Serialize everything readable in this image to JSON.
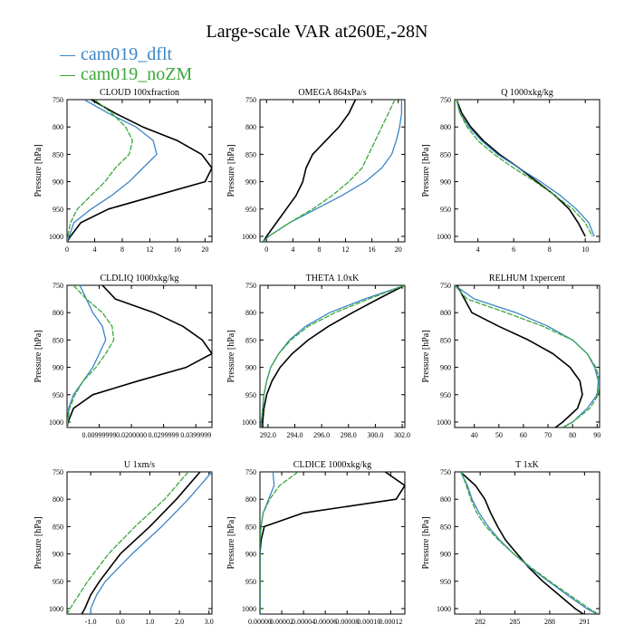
{
  "title": "Large-scale VAR at260E,-28N",
  "legend": [
    {
      "label": "cam019_dflt",
      "color": "#3a85c5"
    },
    {
      "label": "cam019_noZM",
      "color": "#3aa83a"
    }
  ],
  "colors": {
    "black": "#000000",
    "dflt": "#3a85c5",
    "noZM": "#3aa83a"
  },
  "chart_data": [
    {
      "type": "line",
      "title": "CLOUD  100xfraction",
      "ylabel": "Pressure [hPa]",
      "ylim": [
        1010,
        750
      ],
      "yticks": [
        750,
        800,
        850,
        900,
        950,
        1000
      ],
      "xlim": [
        0,
        21
      ],
      "xticks": [
        0,
        4,
        8,
        12,
        16,
        20
      ],
      "xticklabels": [
        "0",
        "4",
        "8",
        "12",
        "16",
        "20"
      ],
      "y": [
        750,
        775,
        800,
        825,
        850,
        875,
        900,
        925,
        950,
        975,
        1000,
        1010
      ],
      "series": [
        {
          "color": "black",
          "values": [
            3.5,
            7,
            11,
            16,
            19.5,
            21,
            20,
            13,
            6,
            2,
            0.5,
            0
          ]
        },
        {
          "color": "dflt",
          "values": [
            2.5,
            6,
            10,
            12.5,
            13,
            11,
            9,
            6.5,
            3.5,
            1,
            0.3,
            0
          ]
        },
        {
          "color": "noZM",
          "values": [
            4,
            6.5,
            8.5,
            9.5,
            9,
            7,
            5.5,
            3.5,
            1.5,
            0.5,
            0.1,
            0
          ]
        }
      ]
    },
    {
      "type": "line",
      "title": "OMEGA  864xPa/s",
      "ylabel": "Pressure [hPa]",
      "ylim": [
        1010,
        750
      ],
      "yticks": [
        750,
        800,
        850,
        900,
        950,
        1000
      ],
      "xlim": [
        -1,
        21
      ],
      "xticks": [
        0,
        4,
        8,
        12,
        16,
        20
      ],
      "xticklabels": [
        "0",
        "4",
        "8",
        "12",
        "16",
        "20"
      ],
      "y": [
        750,
        775,
        800,
        825,
        850,
        875,
        900,
        925,
        950,
        975,
        1000,
        1010
      ],
      "series": [
        {
          "color": "black",
          "values": [
            13.5,
            12.5,
            11,
            9,
            7,
            6,
            5.5,
            4.5,
            3,
            1.5,
            0,
            -0.5
          ]
        },
        {
          "color": "dflt",
          "values": [
            20.5,
            20.5,
            20.2,
            19.7,
            19,
            17.5,
            15,
            11.5,
            7.5,
            3.5,
            0.3,
            -0.5
          ]
        },
        {
          "color": "noZM",
          "values": [
            19.5,
            18.5,
            17.5,
            16.5,
            15.5,
            14.5,
            12.5,
            10,
            7,
            3.5,
            0.3,
            -0.5
          ]
        }
      ]
    },
    {
      "type": "line",
      "title": "Q  1000xkg/kg",
      "ylabel": "Pressure [hPa]",
      "ylim": [
        1010,
        750
      ],
      "yticks": [
        750,
        800,
        850,
        900,
        950,
        1000
      ],
      "xlim": [
        2.7,
        10.8
      ],
      "xticks": [
        4,
        6,
        8,
        10
      ],
      "xticklabels": [
        "4",
        "6",
        "8",
        "10"
      ],
      "y": [
        750,
        775,
        800,
        825,
        850,
        875,
        900,
        925,
        950,
        975,
        1000
      ],
      "series": [
        {
          "color": "black",
          "values": [
            2.8,
            3.1,
            3.6,
            4.3,
            5.2,
            6.3,
            7.3,
            8.3,
            9.1,
            9.6,
            10
          ]
        },
        {
          "color": "dflt",
          "values": [
            2.8,
            3,
            3.5,
            4.2,
            5.1,
            6.3,
            7.5,
            8.6,
            9.5,
            10.2,
            10.5
          ]
        },
        {
          "color": "noZM",
          "values": [
            2.8,
            3,
            3.4,
            4,
            4.9,
            6,
            7.2,
            8.3,
            9.3,
            10,
            10.4
          ]
        }
      ]
    },
    {
      "type": "line",
      "title": "CLDLIQ  1000xkg/kg",
      "ylabel": "Pressure [hPa]",
      "ylim": [
        1010,
        750
      ],
      "yticks": [
        750,
        800,
        850,
        900,
        950,
        1000
      ],
      "xlim": [
        0,
        0.045
      ],
      "xticks": [
        0.01,
        0.02,
        0.03,
        0.04
      ],
      "xticklabels": [
        "0.00999999",
        "0.0200000",
        "0.0299999",
        "0.0399999"
      ],
      "y": [
        750,
        775,
        800,
        825,
        850,
        875,
        900,
        925,
        950,
        975,
        1000,
        1010
      ],
      "series": [
        {
          "color": "black",
          "values": [
            0.011,
            0.015,
            0.027,
            0.036,
            0.042,
            0.045,
            0.037,
            0.022,
            0.008,
            0.002,
            0.0003,
            0
          ]
        },
        {
          "color": "dflt",
          "values": [
            0.004,
            0.006,
            0.008,
            0.011,
            0.012,
            0.01,
            0.008,
            0.005,
            0.002,
            0.0005,
            0.0001,
            0
          ]
        },
        {
          "color": "noZM",
          "values": [
            0.002,
            0.006,
            0.011,
            0.014,
            0.0145,
            0.012,
            0.009,
            0.005,
            0.0025,
            0.0008,
            0.0002,
            0
          ]
        }
      ]
    },
    {
      "type": "line",
      "title": "THETA  1.0xK",
      "ylabel": "Pressure [hPa]",
      "ylim": [
        1010,
        750
      ],
      "yticks": [
        750,
        800,
        850,
        900,
        950,
        1000
      ],
      "xlim": [
        291.4,
        302.2
      ],
      "xticks": [
        292,
        294,
        296,
        298,
        300,
        302
      ],
      "xticklabels": [
        "292.0",
        "294.0",
        "296.0",
        "298.0",
        "300.0",
        "302.0"
      ],
      "y": [
        750,
        775,
        800,
        825,
        850,
        875,
        900,
        925,
        950,
        975,
        1000,
        1010
      ],
      "series": [
        {
          "color": "black",
          "values": [
            302.2,
            300.2,
            298.3,
            296.5,
            295,
            293.8,
            292.9,
            292.3,
            291.9,
            291.7,
            291.6,
            291.6
          ]
        },
        {
          "color": "dflt",
          "values": [
            302.2,
            299.2,
            296.6,
            294.8,
            293.6,
            292.8,
            292.2,
            291.9,
            291.7,
            291.6,
            291.5,
            291.5
          ]
        },
        {
          "color": "noZM",
          "values": [
            302.2,
            299.5,
            297,
            295,
            293.7,
            292.8,
            292.2,
            291.9,
            291.7,
            291.6,
            291.5,
            291.5
          ]
        }
      ]
    },
    {
      "type": "line",
      "title": "RELHUM  1xpercent",
      "ylabel": "Pressure [hPa]",
      "ylim": [
        1010,
        750
      ],
      "yticks": [
        750,
        800,
        850,
        900,
        950,
        1000
      ],
      "xlim": [
        32,
        91
      ],
      "xticks": [
        40,
        50,
        60,
        70,
        80,
        90
      ],
      "xticklabels": [
        "40",
        "50",
        "60",
        "70",
        "80",
        "90"
      ],
      "y": [
        750,
        775,
        800,
        825,
        850,
        875,
        900,
        925,
        950,
        975,
        1000,
        1010
      ],
      "series": [
        {
          "color": "black",
          "values": [
            33,
            36,
            39,
            50,
            62,
            72,
            79,
            83,
            84,
            82,
            76,
            73
          ]
        },
        {
          "color": "dflt",
          "values": [
            32,
            40,
            57,
            70,
            80,
            86,
            89,
            90.5,
            90,
            86,
            80,
            76
          ]
        },
        {
          "color": "noZM",
          "values": [
            32,
            37,
            53,
            68,
            80,
            86,
            89.5,
            91,
            90.5,
            87,
            80,
            76
          ]
        }
      ]
    },
    {
      "type": "line",
      "title": "U  1xm/s",
      "ylabel": "Pressure [hPa]",
      "ylim": [
        1010,
        750
      ],
      "yticks": [
        750,
        800,
        850,
        900,
        950,
        1000
      ],
      "xlim": [
        -1.8,
        3.1
      ],
      "xticks": [
        -1,
        0,
        1,
        2,
        3
      ],
      "xticklabels": [
        "-1.0",
        "0.0",
        "1.0",
        "2.0",
        "3.0"
      ],
      "y": [
        750,
        800,
        850,
        900,
        950,
        975,
        1000,
        1010
      ],
      "series": [
        {
          "color": "black",
          "values": [
            2.7,
            1.9,
            1,
            0,
            -0.7,
            -1,
            -1.2,
            -1.3
          ]
        },
        {
          "color": "dflt",
          "values": [
            3.1,
            2.3,
            1.4,
            0.4,
            -0.5,
            -0.8,
            -1,
            -1
          ]
        },
        {
          "color": "noZM",
          "values": [
            2.3,
            1.5,
            0.5,
            -0.4,
            -1.1,
            -1.4,
            -1.7,
            -1.8
          ]
        }
      ]
    },
    {
      "type": "line",
      "title": "CLDICE  1000xkg/kg",
      "ylabel": "Pressure [hPa]",
      "ylim": [
        1010,
        750
      ],
      "yticks": [
        750,
        800,
        850,
        900,
        950,
        1000
      ],
      "xlim": [
        0,
        0.000133
      ],
      "xticks": [
        0,
        2e-05,
        4e-05,
        6e-05,
        8e-05,
        0.0001,
        0.00012
      ],
      "xticklabels": [
        "0.00000",
        "0.00002",
        "0.00004",
        "0.00006",
        "0.00008",
        "0.00010",
        "0.00012"
      ],
      "y": [
        750,
        775,
        800,
        825,
        850,
        875,
        900,
        950,
        1000,
        1010
      ],
      "series": [
        {
          "color": "black",
          "values": [
            0.000115,
            0.000133,
            0.000125,
            4e-05,
            4e-06,
            1e-06,
            0,
            0,
            0,
            0
          ]
        },
        {
          "color": "dflt",
          "values": [
            1.2e-05,
            1.3e-05,
            8e-06,
            3e-06,
            1e-06,
            0,
            0,
            0,
            0,
            0
          ]
        },
        {
          "color": "noZM",
          "values": [
            3.5e-05,
            1.8e-05,
            9e-06,
            3e-06,
            1e-06,
            0,
            0,
            0,
            0,
            0
          ]
        }
      ]
    },
    {
      "type": "line",
      "title": "T  1xK",
      "ylabel": "Pressure [hPa]",
      "ylim": [
        1010,
        750
      ],
      "yticks": [
        750,
        800,
        850,
        900,
        950,
        1000
      ],
      "xlim": [
        279.8,
        292.3
      ],
      "xticks": [
        282,
        285,
        288,
        291
      ],
      "xticklabels": [
        "282",
        "285",
        "288",
        "291"
      ],
      "y": [
        750,
        775,
        800,
        825,
        850,
        875,
        900,
        925,
        950,
        975,
        1000,
        1010
      ],
      "series": [
        {
          "color": "black",
          "values": [
            280.3,
            281.6,
            282.4,
            282.9,
            283.5,
            284.2,
            285.2,
            286.2,
            287.4,
            288.8,
            290.2,
            290.9
          ]
        },
        {
          "color": "dflt",
          "values": [
            280.3,
            280.9,
            281.3,
            281.9,
            282.7,
            283.7,
            284.9,
            286.3,
            287.9,
            289.5,
            291.2,
            292.1
          ]
        },
        {
          "color": "noZM",
          "values": [
            280.4,
            280.8,
            281.2,
            281.7,
            282.5,
            283.6,
            284.9,
            286.4,
            288,
            289.7,
            291.4,
            292.2
          ]
        }
      ]
    }
  ]
}
